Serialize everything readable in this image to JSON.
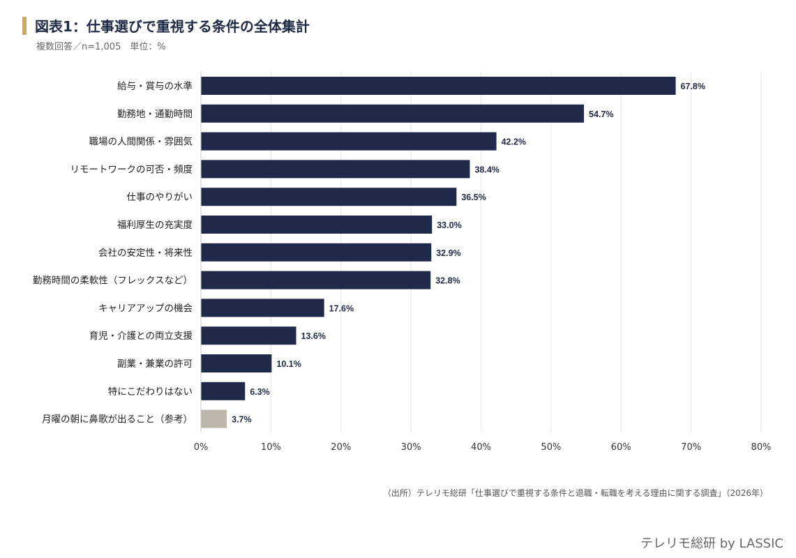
{
  "header": {
    "title": "図表1：仕事選びで重視する条件の全体集計",
    "subtitle": "複数回答／n=1,005　単位：%"
  },
  "chart_data": {
    "type": "bar",
    "orientation": "horizontal",
    "categories": [
      "給与・賞与の水準",
      "勤務地・通勤時間",
      "職場の人間関係・雰囲気",
      "リモートワークの可否・頻度",
      "仕事のやりがい",
      "福利厚生の充実度",
      "会社の安定性・将来性",
      "勤務時間の柔軟性（フレックスなど）",
      "キャリアアップの機会",
      "育児・介護との両立支援",
      "副業・兼業の許可",
      "特にこだわりはない",
      "月曜の朝に鼻歌が出ること（参考）"
    ],
    "values": [
      67.8,
      54.7,
      42.2,
      38.4,
      36.5,
      33.0,
      32.9,
      32.8,
      17.6,
      13.6,
      10.1,
      6.3,
      3.7
    ],
    "value_labels": [
      "67.8%",
      "54.7%",
      "42.2%",
      "38.4%",
      "36.5%",
      "33.0%",
      "32.9%",
      "32.8%",
      "17.6%",
      "13.6%",
      "10.1%",
      "6.3%",
      "3.7%"
    ],
    "xlim": [
      0,
      80
    ],
    "ticks": [
      0,
      10,
      20,
      30,
      40,
      50,
      60,
      70,
      80
    ],
    "tick_labels": [
      "0%",
      "10%",
      "20%",
      "30%",
      "40%",
      "50%",
      "60%",
      "70%",
      "80%"
    ],
    "grid": true,
    "colors": {
      "main": "#1f2a4a",
      "reference": "#bdb6ad",
      "grid": "#e6e6e6"
    },
    "reference_index": 12
  },
  "footer": {
    "source": "（出所）テレリモ総研「仕事選びで重視する条件と退職・転職を考える理由に関する調査」（2026年）",
    "brand": "テレリモ総研 by LASSIC"
  }
}
